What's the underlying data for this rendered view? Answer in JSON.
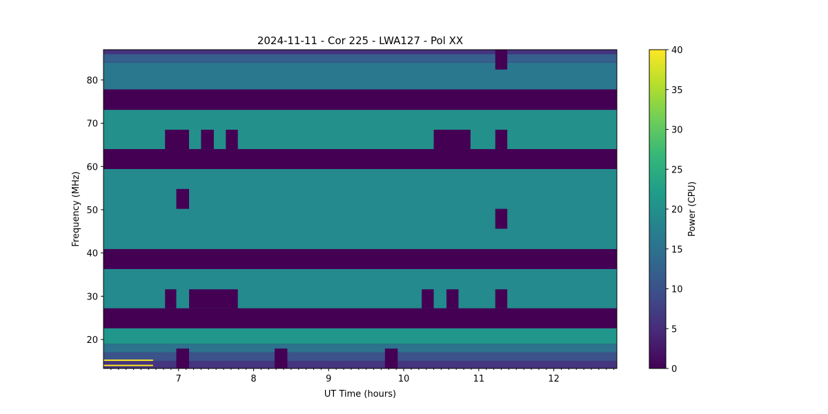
{
  "chart_data": {
    "type": "heatmap",
    "title": "2024-11-11 - Cor 225 - LWA127 - Pol XX",
    "xlabel": "UT Time (hours)",
    "ylabel": "Frequency (MHz)",
    "xlim": [
      6.0,
      12.84
    ],
    "ylim": [
      13.3,
      87.0
    ],
    "xticks": [
      "7",
      "8",
      "9",
      "10",
      "11",
      "12"
    ],
    "xtick_values": [
      7,
      8,
      9,
      10,
      11,
      12
    ],
    "yticks": [
      "20",
      "30",
      "40",
      "50",
      "60",
      "70",
      "80"
    ],
    "ytick_values": [
      20,
      30,
      40,
      50,
      60,
      70,
      80
    ],
    "colorbar": {
      "label": "Power (CPU)",
      "range": [
        0,
        40
      ],
      "ticks": [
        "0",
        "5",
        "10",
        "15",
        "20",
        "25",
        "30",
        "35",
        "40"
      ],
      "tick_values": [
        0,
        5,
        10,
        15,
        20,
        25,
        30,
        35,
        40
      ],
      "colormap": "viridis"
    },
    "background_profile": [
      {
        "f0": 13.3,
        "f1": 15,
        "power": 6
      },
      {
        "f0": 15,
        "f1": 17,
        "power": 10
      },
      {
        "f0": 17,
        "f1": 19,
        "power": 15
      },
      {
        "f0": 19,
        "f1": 22.6,
        "power": 21
      },
      {
        "f0": 27.2,
        "f1": 36.3,
        "power": 19
      },
      {
        "f0": 40.9,
        "f1": 59.4,
        "power": 19
      },
      {
        "f0": 64,
        "f1": 73.1,
        "power": 20
      },
      {
        "f0": 77.8,
        "f1": 84,
        "power": 16
      },
      {
        "f0": 84,
        "f1": 86,
        "power": 12
      },
      {
        "f0": 86,
        "f1": 87,
        "power": 6
      }
    ],
    "flagged_bands_mhz": [
      [
        73.1,
        77.8
      ],
      [
        59.4,
        64.0
      ],
      [
        36.3,
        40.9
      ],
      [
        22.6,
        27.2
      ]
    ],
    "flagged_blocks": [
      {
        "t": [
          11.22,
          11.38
        ],
        "f": [
          82.4,
          87.0
        ]
      },
      {
        "t": [
          6.82,
          7.14
        ],
        "f": [
          64.0,
          68.5
        ]
      },
      {
        "t": [
          7.3,
          7.47
        ],
        "f": [
          64.0,
          68.5
        ]
      },
      {
        "t": [
          7.63,
          7.79
        ],
        "f": [
          64.0,
          68.5
        ]
      },
      {
        "t": [
          10.4,
          10.89
        ],
        "f": [
          64.0,
          68.5
        ]
      },
      {
        "t": [
          11.22,
          11.38
        ],
        "f": [
          64.0,
          68.5
        ]
      },
      {
        "t": [
          6.97,
          7.14
        ],
        "f": [
          50.2,
          54.8
        ]
      },
      {
        "t": [
          11.22,
          11.38
        ],
        "f": [
          45.6,
          50.2
        ]
      },
      {
        "t": [
          6.82,
          6.97
        ],
        "f": [
          27.2,
          31.6
        ]
      },
      {
        "t": [
          7.14,
          7.79
        ],
        "f": [
          27.2,
          31.6
        ]
      },
      {
        "t": [
          10.24,
          10.4
        ],
        "f": [
          27.2,
          31.6
        ]
      },
      {
        "t": [
          10.57,
          10.73
        ],
        "f": [
          27.2,
          31.6
        ]
      },
      {
        "t": [
          11.22,
          11.38
        ],
        "f": [
          27.2,
          31.6
        ]
      },
      {
        "t": [
          6.97,
          7.14
        ],
        "f": [
          13.3,
          17.9
        ]
      },
      {
        "t": [
          8.28,
          8.45
        ],
        "f": [
          13.3,
          17.9
        ]
      },
      {
        "t": [
          9.75,
          9.92
        ],
        "f": [
          13.3,
          17.9
        ]
      }
    ],
    "rfi_lines": [
      {
        "t": [
          6.0,
          6.66
        ],
        "f": 15.2,
        "power": 40
      },
      {
        "t": [
          6.0,
          6.66
        ],
        "f": 14.0,
        "power": 40
      }
    ]
  }
}
